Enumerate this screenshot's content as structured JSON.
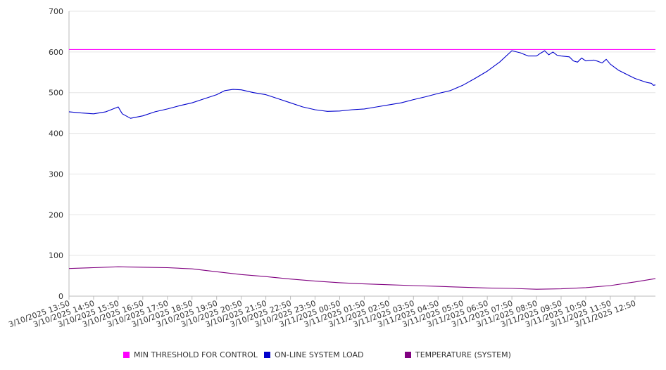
{
  "chart_data": {
    "type": "line",
    "ylim": [
      0,
      700
    ],
    "y_ticks": [
      0,
      100,
      200,
      300,
      400,
      500,
      600,
      700
    ],
    "x_range": [
      "3/10/2025 13:50",
      "3/11/2025 13:40"
    ],
    "x_ticks": [
      "3/10/2025 13:50",
      "3/10/2025 14:50",
      "3/10/2025 15:50",
      "3/10/2025 16:50",
      "3/10/2025 17:50",
      "3/10/2025 18:50",
      "3/10/2025 19:50",
      "3/10/2025 20:50",
      "3/10/2025 21:50",
      "3/10/2025 22:50",
      "3/10/2025 23:50",
      "3/11/2025 00:50",
      "3/11/2025 01:50",
      "3/11/2025 02:50",
      "3/11/2025 03:50",
      "3/11/2025 04:50",
      "3/11/2025 05:50",
      "3/11/2025 06:50",
      "3/11/2025 07:50",
      "3/11/2025 08:50",
      "3/11/2025 09:50",
      "3/11/2025 10:50",
      "3/11/2025 11:50",
      "3/11/2025 12:50"
    ],
    "grid": true,
    "legend_position": "bottom",
    "series": [
      {
        "name": "MIN THRESHOLD FOR CONTROL",
        "color": "#ff00ff",
        "points": [
          [
            "3/10/2025 13:50",
            606
          ],
          [
            "3/11/2025 13:40",
            606
          ]
        ]
      },
      {
        "name": "ON-LINE SYSTEM LOAD",
        "color": "#0000cc",
        "points": [
          [
            "3/10/2025 13:50",
            453
          ],
          [
            "3/10/2025 14:20",
            450
          ],
          [
            "3/10/2025 14:50",
            448
          ],
          [
            "3/10/2025 15:20",
            453
          ],
          [
            "3/10/2025 15:50",
            465
          ],
          [
            "3/10/2025 16:00",
            448
          ],
          [
            "3/10/2025 16:20",
            437
          ],
          [
            "3/10/2025 16:50",
            443
          ],
          [
            "3/10/2025 17:20",
            453
          ],
          [
            "3/10/2025 17:50",
            460
          ],
          [
            "3/10/2025 18:20",
            468
          ],
          [
            "3/10/2025 18:50",
            475
          ],
          [
            "3/10/2025 19:20",
            485
          ],
          [
            "3/10/2025 19:50",
            495
          ],
          [
            "3/10/2025 20:10",
            505
          ],
          [
            "3/10/2025 20:30",
            508
          ],
          [
            "3/10/2025 20:50",
            507
          ],
          [
            "3/10/2025 21:20",
            500
          ],
          [
            "3/10/2025 21:50",
            495
          ],
          [
            "3/10/2025 22:20",
            485
          ],
          [
            "3/10/2025 22:50",
            475
          ],
          [
            "3/10/2025 23:20",
            465
          ],
          [
            "3/10/2025 23:50",
            458
          ],
          [
            "3/11/2025 00:20",
            454
          ],
          [
            "3/11/2025 00:50",
            455
          ],
          [
            "3/11/2025 01:20",
            458
          ],
          [
            "3/11/2025 01:50",
            460
          ],
          [
            "3/11/2025 02:20",
            465
          ],
          [
            "3/11/2025 02:50",
            470
          ],
          [
            "3/11/2025 03:20",
            475
          ],
          [
            "3/11/2025 03:50",
            483
          ],
          [
            "3/11/2025 04:20",
            490
          ],
          [
            "3/11/2025 04:50",
            498
          ],
          [
            "3/11/2025 05:20",
            505
          ],
          [
            "3/11/2025 05:50",
            518
          ],
          [
            "3/11/2025 06:20",
            535
          ],
          [
            "3/11/2025 06:50",
            553
          ],
          [
            "3/11/2025 07:20",
            575
          ],
          [
            "3/11/2025 07:50",
            603
          ],
          [
            "3/11/2025 08:10",
            598
          ],
          [
            "3/11/2025 08:30",
            590
          ],
          [
            "3/11/2025 08:50",
            590
          ],
          [
            "3/11/2025 09:00",
            597
          ],
          [
            "3/11/2025 09:10",
            603
          ],
          [
            "3/11/2025 09:20",
            593
          ],
          [
            "3/11/2025 09:30",
            600
          ],
          [
            "3/11/2025 09:40",
            592
          ],
          [
            "3/11/2025 09:50",
            590
          ],
          [
            "3/11/2025 10:10",
            588
          ],
          [
            "3/11/2025 10:20",
            578
          ],
          [
            "3/11/2025 10:30",
            575
          ],
          [
            "3/11/2025 10:40",
            585
          ],
          [
            "3/11/2025 10:50",
            578
          ],
          [
            "3/11/2025 11:10",
            580
          ],
          [
            "3/11/2025 11:20",
            577
          ],
          [
            "3/11/2025 11:30",
            573
          ],
          [
            "3/11/2025 11:40",
            582
          ],
          [
            "3/11/2025 11:50",
            570
          ],
          [
            "3/11/2025 12:10",
            555
          ],
          [
            "3/11/2025 12:30",
            545
          ],
          [
            "3/11/2025 12:50",
            535
          ],
          [
            "3/11/2025 13:10",
            528
          ],
          [
            "3/11/2025 13:20",
            525
          ],
          [
            "3/11/2025 13:30",
            523
          ],
          [
            "3/11/2025 13:35",
            518
          ],
          [
            "3/11/2025 13:40",
            519
          ]
        ]
      },
      {
        "name": "TEMPERATURE (SYSTEM)",
        "color": "#800080",
        "points": [
          [
            "3/10/2025 13:50",
            68
          ],
          [
            "3/10/2025 14:50",
            70
          ],
          [
            "3/10/2025 15:50",
            72
          ],
          [
            "3/10/2025 16:50",
            71
          ],
          [
            "3/10/2025 17:50",
            70
          ],
          [
            "3/10/2025 18:50",
            67
          ],
          [
            "3/10/2025 19:50",
            60
          ],
          [
            "3/10/2025 20:50",
            53
          ],
          [
            "3/10/2025 21:50",
            48
          ],
          [
            "3/10/2025 22:50",
            42
          ],
          [
            "3/10/2025 23:50",
            37
          ],
          [
            "3/11/2025 00:50",
            33
          ],
          [
            "3/11/2025 01:50",
            30
          ],
          [
            "3/11/2025 02:50",
            28
          ],
          [
            "3/11/2025 03:50",
            26
          ],
          [
            "3/11/2025 04:50",
            24
          ],
          [
            "3/11/2025 05:50",
            22
          ],
          [
            "3/11/2025 06:50",
            20
          ],
          [
            "3/11/2025 07:50",
            19
          ],
          [
            "3/11/2025 08:50",
            17
          ],
          [
            "3/11/2025 09:50",
            18
          ],
          [
            "3/11/2025 10:50",
            21
          ],
          [
            "3/11/2025 11:50",
            26
          ],
          [
            "3/11/2025 12:50",
            35
          ],
          [
            "3/11/2025 13:40",
            43
          ]
        ]
      }
    ]
  }
}
